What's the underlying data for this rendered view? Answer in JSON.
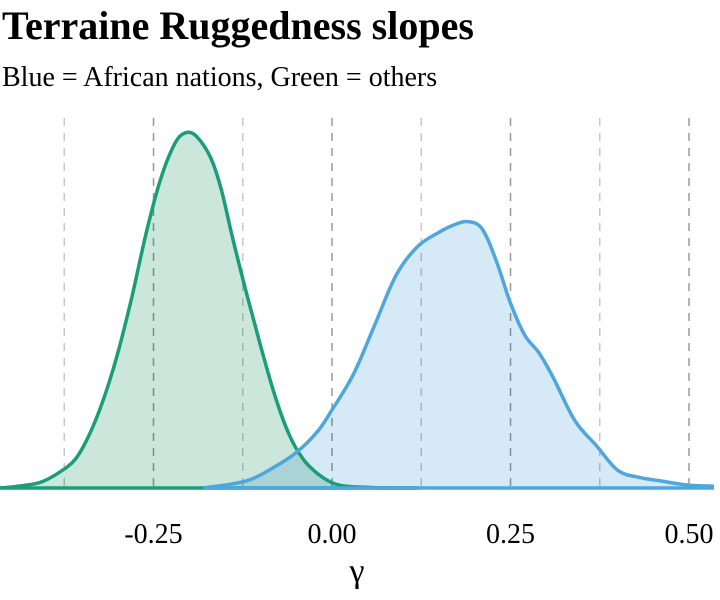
{
  "chart_data": {
    "type": "area",
    "title": "Terraine Ruggedness slopes",
    "subtitle": "Blue = African nations, Green = others",
    "xlabel": "γ",
    "ylabel": "",
    "xlim": [
      -0.465,
      0.535
    ],
    "ylim": [
      0,
      1.05
    ],
    "xticks": [
      -0.25,
      0.0,
      0.25,
      0.5
    ],
    "xtick_labels": [
      "-0.25",
      "0.00",
      "0.25",
      "0.50"
    ],
    "gridlines_x": [
      -0.375,
      -0.25,
      -0.125,
      0.0,
      0.125,
      0.25,
      0.375,
      0.5
    ],
    "grid": "vertical dashed",
    "legend": "none",
    "series": [
      {
        "color": "#1b9e77",
        "fill": "#c2e3d6",
        "x": [
          -0.465,
          -0.44,
          -0.41,
          -0.385,
          -0.36,
          -0.34,
          -0.32,
          -0.3,
          -0.28,
          -0.26,
          -0.24,
          -0.22,
          -0.205,
          -0.19,
          -0.17,
          -0.155,
          -0.14,
          -0.12,
          -0.1,
          -0.08,
          -0.06,
          -0.04,
          -0.02,
          0.0,
          0.02,
          0.05,
          0.08,
          0.12
        ],
        "values": [
          0.0,
          0.005,
          0.015,
          0.04,
          0.08,
          0.15,
          0.25,
          0.38,
          0.54,
          0.72,
          0.87,
          0.97,
          1.0,
          0.99,
          0.93,
          0.84,
          0.71,
          0.55,
          0.4,
          0.26,
          0.15,
          0.08,
          0.04,
          0.015,
          0.005,
          0.002,
          0.0,
          0.0
        ]
      },
      {
        "color": "#4fa6dc",
        "fill": "#cfe5f6",
        "x": [
          -0.18,
          -0.12,
          -0.08,
          -0.05,
          -0.02,
          0.0,
          0.03,
          0.06,
          0.09,
          0.12,
          0.15,
          0.17,
          0.19,
          0.21,
          0.23,
          0.25,
          0.27,
          0.29,
          0.31,
          0.34,
          0.37,
          0.4,
          0.43,
          0.46,
          0.5,
          0.535
        ],
        "values": [
          0.0,
          0.02,
          0.06,
          0.1,
          0.16,
          0.22,
          0.32,
          0.46,
          0.6,
          0.68,
          0.72,
          0.74,
          0.75,
          0.73,
          0.64,
          0.52,
          0.43,
          0.38,
          0.31,
          0.19,
          0.12,
          0.05,
          0.03,
          0.02,
          0.008,
          0.005
        ]
      }
    ]
  }
}
